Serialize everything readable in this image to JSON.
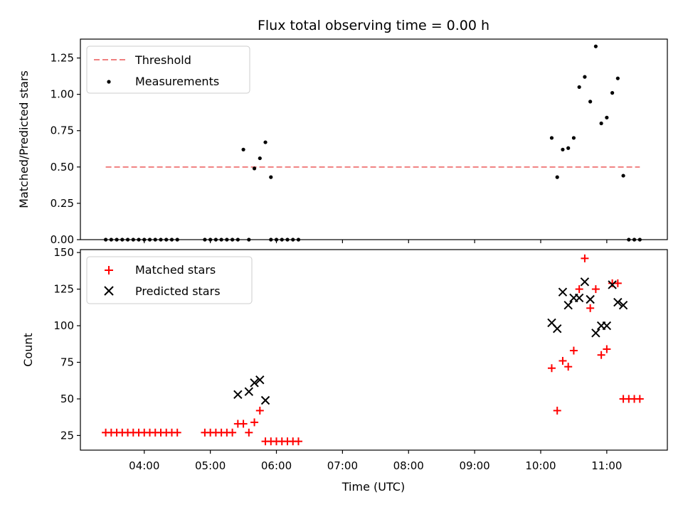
{
  "colors": {
    "threshold": "#f08080",
    "measurements": "#000000",
    "matched": "#ff0000",
    "predicted": "#000000"
  },
  "chart_data": [
    {
      "type": "scatter",
      "title": "Flux total observing time = 0.00 h",
      "xlabel": "",
      "ylabel": "Matched/Predicted stars",
      "ylim": [
        0,
        1.38
      ],
      "yticks": [
        "0.00",
        "0.25",
        "0.50",
        "0.75",
        "1.00",
        "1.25"
      ],
      "legend": {
        "position": "upper left",
        "entries": [
          "Threshold",
          "Measurements"
        ]
      },
      "threshold": {
        "name": "Threshold",
        "y": 0.5,
        "x_start": "03:25",
        "x_end": "11:30",
        "style": "dashed"
      },
      "series": [
        {
          "name": "Measurements",
          "marker": "dot",
          "x": [
            "03:25",
            "03:30",
            "03:35",
            "03:40",
            "03:45",
            "03:50",
            "03:55",
            "04:00",
            "04:05",
            "04:10",
            "04:15",
            "04:20",
            "04:25",
            "04:30",
            "04:55",
            "05:00",
            "05:05",
            "05:10",
            "05:15",
            "05:20",
            "05:25",
            "05:30",
            "05:35",
            "05:40",
            "05:45",
            "05:50",
            "05:55",
            "05:55",
            "06:00",
            "06:05",
            "06:10",
            "06:15",
            "06:20",
            "10:10",
            "10:15",
            "10:20",
            "10:25",
            "10:30",
            "10:35",
            "10:40",
            "10:45",
            "10:50",
            "10:55",
            "11:00",
            "11:05",
            "11:10",
            "11:15",
            "11:20",
            "11:25",
            "11:30"
          ],
          "y": [
            0,
            0,
            0,
            0,
            0,
            0,
            0,
            0,
            0,
            0,
            0,
            0,
            0,
            0,
            0,
            0,
            0,
            0,
            0,
            0,
            0,
            0.62,
            0,
            0.49,
            0.56,
            0.67,
            0.43,
            0,
            0,
            0,
            0,
            0,
            0,
            0.7,
            0.43,
            0.62,
            0.63,
            0.7,
            1.05,
            1.12,
            0.95,
            1.33,
            0.8,
            0.84,
            1.01,
            1.11,
            0.44,
            0,
            0,
            0
          ]
        }
      ]
    },
    {
      "type": "scatter",
      "title": "",
      "xlabel": "Time (UTC)",
      "ylabel": "Count",
      "ylim": [
        15,
        152
      ],
      "yticks": [
        "25",
        "50",
        "75",
        "100",
        "125",
        "150"
      ],
      "xticks": [
        "04:00",
        "05:00",
        "06:00",
        "07:00",
        "08:00",
        "09:00",
        "10:00",
        "11:00"
      ],
      "xlim": [
        "03:02",
        "11:55"
      ],
      "legend": {
        "position": "upper left",
        "entries": [
          "Matched stars",
          "Predicted stars"
        ]
      },
      "series": [
        {
          "name": "Matched stars",
          "marker": "plus",
          "x": [
            "03:25",
            "03:30",
            "03:35",
            "03:40",
            "03:45",
            "03:50",
            "03:55",
            "04:00",
            "04:05",
            "04:10",
            "04:15",
            "04:20",
            "04:25",
            "04:30",
            "04:55",
            "05:00",
            "05:05",
            "05:10",
            "05:15",
            "05:20",
            "05:25",
            "05:30",
            "05:35",
            "05:40",
            "05:45",
            "05:50",
            "05:55",
            "06:00",
            "06:05",
            "06:10",
            "06:15",
            "06:20",
            "10:10",
            "10:15",
            "10:20",
            "10:25",
            "10:30",
            "10:35",
            "10:40",
            "10:45",
            "10:50",
            "10:55",
            "11:00",
            "11:05",
            "11:10",
            "11:15",
            "11:20",
            "11:25",
            "11:30"
          ],
          "y": [
            27,
            27,
            27,
            27,
            27,
            27,
            27,
            27,
            27,
            27,
            27,
            27,
            27,
            27,
            27,
            27,
            27,
            27,
            27,
            27,
            33,
            33,
            27,
            34,
            42,
            21,
            21,
            21,
            21,
            21,
            21,
            21,
            71,
            42,
            76,
            72,
            83,
            125,
            146,
            112,
            125,
            80,
            84,
            129,
            129,
            50,
            50,
            50,
            50
          ]
        },
        {
          "name": "Predicted stars",
          "marker": "x",
          "x": [
            "05:25",
            "05:35",
            "05:40",
            "05:45",
            "05:50",
            "10:10",
            "10:15",
            "10:20",
            "10:25",
            "10:30",
            "10:35",
            "10:40",
            "10:45",
            "10:50",
            "10:55",
            "11:00",
            "11:05",
            "11:10",
            "11:15"
          ],
          "y": [
            53,
            55,
            61,
            63,
            49,
            102,
            98,
            123,
            114,
            119,
            119,
            130,
            118,
            95,
            100,
            100,
            128,
            116,
            114
          ]
        }
      ]
    }
  ]
}
